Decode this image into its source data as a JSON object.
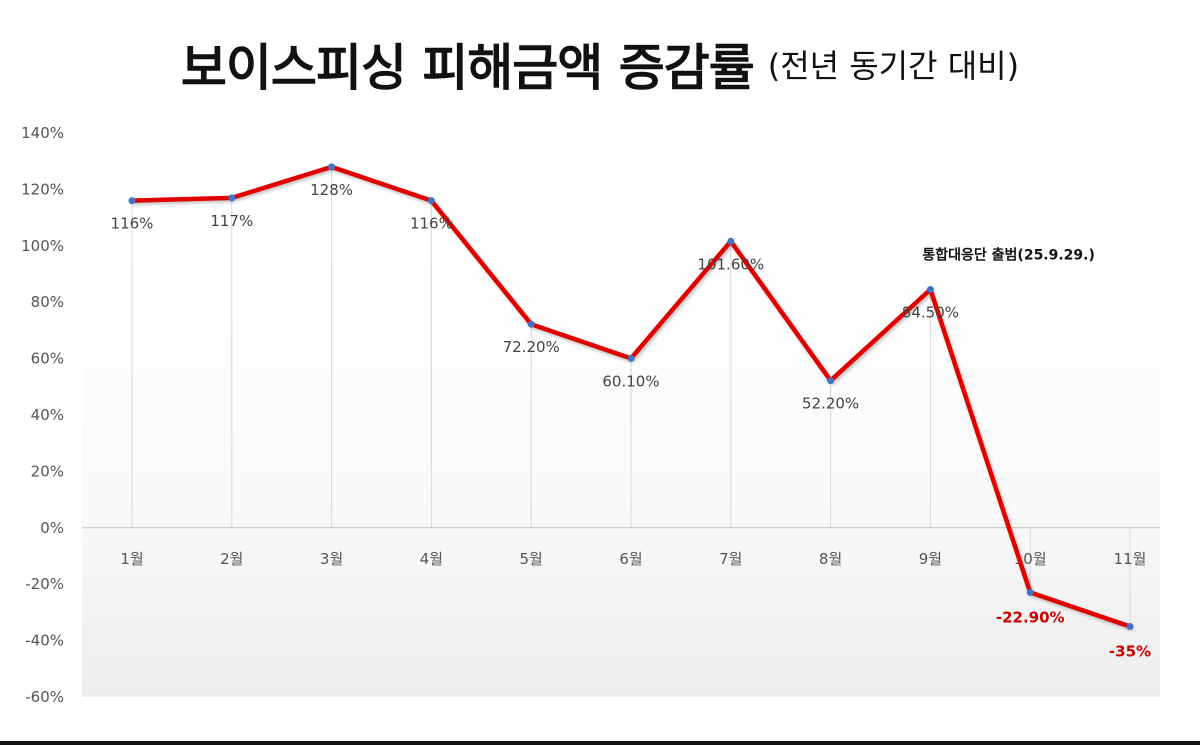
{
  "title": {
    "main": "보이스피싱 피해금액 증감률",
    "sub": "(전년 동기간 대비)"
  },
  "colors": {
    "line": "#e00000",
    "marker": "#4472c4",
    "negative_label": "#cc0000",
    "gridline": "#d9d9d9"
  },
  "annotation": "통합대응단 출범(25.9.29.)",
  "chart_data": {
    "type": "line",
    "categories": [
      "1월",
      "2월",
      "3월",
      "4월",
      "5월",
      "6월",
      "7월",
      "8월",
      "9월",
      "10월",
      "11월"
    ],
    "values": [
      116,
      117,
      128,
      116,
      72.2,
      60.1,
      101.6,
      52.2,
      84.5,
      -22.9,
      -35
    ],
    "data_labels": [
      "116%",
      "117%",
      "128%",
      "116%",
      "72.20%",
      "60.10%",
      "101.60%",
      "52.20%",
      "84.50%",
      "-22.90%",
      "-35%"
    ],
    "y_ticks": [
      "140%",
      "120%",
      "100%",
      "80%",
      "60%",
      "40%",
      "20%",
      "0%",
      "-20%",
      "-40%",
      "-60%"
    ],
    "ylim": [
      -60,
      140
    ],
    "grid": "vertical drop lines at each category",
    "legend": "none"
  }
}
